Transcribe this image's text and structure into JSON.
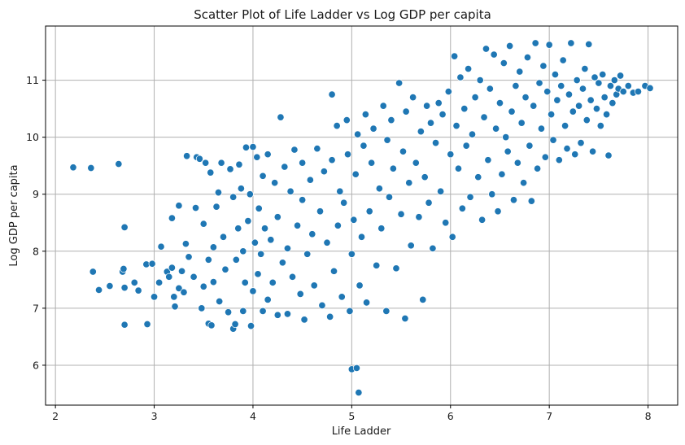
{
  "chart_data": {
    "type": "scatter",
    "title": "Scatter Plot of Life Ladder vs Log GDP per capita",
    "xlabel": "Life Ladder",
    "ylabel": "Log GDP per capita",
    "xlim": [
      1.9,
      8.3
    ],
    "ylim": [
      5.3,
      11.95
    ],
    "xticks": [
      "2",
      "3",
      "4",
      "5",
      "6",
      "7",
      "8"
    ],
    "yticks": [
      "6",
      "7",
      "8",
      "9",
      "10",
      "11"
    ],
    "grid": true,
    "marker_color": "#1f77b4",
    "marker_edge_color": "#ffffff",
    "points": [
      [
        2.18,
        9.47
      ],
      [
        2.36,
        9.46
      ],
      [
        2.64,
        9.53
      ],
      [
        2.38,
        7.64
      ],
      [
        2.44,
        7.32
      ],
      [
        2.55,
        7.39
      ],
      [
        2.68,
        7.64
      ],
      [
        2.69,
        7.69
      ],
      [
        2.7,
        7.36
      ],
      [
        2.7,
        6.71
      ],
      [
        2.7,
        8.42
      ],
      [
        2.8,
        7.45
      ],
      [
        2.84,
        7.31
      ],
      [
        2.92,
        7.77
      ],
      [
        2.93,
        6.72
      ],
      [
        2.98,
        7.78
      ],
      [
        3.0,
        7.2
      ],
      [
        3.05,
        7.45
      ],
      [
        3.07,
        8.08
      ],
      [
        3.13,
        7.64
      ],
      [
        3.15,
        7.55
      ],
      [
        3.18,
        7.71
      ],
      [
        3.18,
        8.58
      ],
      [
        3.2,
        7.2
      ],
      [
        3.21,
        7.03
      ],
      [
        3.25,
        7.35
      ],
      [
        3.25,
        8.8
      ],
      [
        3.28,
        7.65
      ],
      [
        3.3,
        7.28
      ],
      [
        3.32,
        8.13
      ],
      [
        3.33,
        9.67
      ],
      [
        3.35,
        7.9
      ],
      [
        3.4,
        7.55
      ],
      [
        3.42,
        8.76
      ],
      [
        3.43,
        9.65
      ],
      [
        3.46,
        9.62
      ],
      [
        3.48,
        7.0
      ],
      [
        3.5,
        7.38
      ],
      [
        3.5,
        8.48
      ],
      [
        3.52,
        9.55
      ],
      [
        3.55,
        6.73
      ],
      [
        3.55,
        7.85
      ],
      [
        3.57,
        9.38
      ],
      [
        3.58,
        6.7
      ],
      [
        3.6,
        8.07
      ],
      [
        3.6,
        7.46
      ],
      [
        3.63,
        8.78
      ],
      [
        3.65,
        9.03
      ],
      [
        3.66,
        7.12
      ],
      [
        3.68,
        9.55
      ],
      [
        3.7,
        8.25
      ],
      [
        3.72,
        7.68
      ],
      [
        3.75,
        6.93
      ],
      [
        3.77,
        9.44
      ],
      [
        3.8,
        6.64
      ],
      [
        3.8,
        8.95
      ],
      [
        3.82,
        6.72
      ],
      [
        3.83,
        7.85
      ],
      [
        3.85,
        8.4
      ],
      [
        3.86,
        9.52
      ],
      [
        3.88,
        9.1
      ],
      [
        3.9,
        6.95
      ],
      [
        3.9,
        8.0
      ],
      [
        3.92,
        7.45
      ],
      [
        3.93,
        9.82
      ],
      [
        3.95,
        8.53
      ],
      [
        3.97,
        9.0
      ],
      [
        3.98,
        6.69
      ],
      [
        4.0,
        7.3
      ],
      [
        4.0,
        9.83
      ],
      [
        4.02,
        8.15
      ],
      [
        4.04,
        9.65
      ],
      [
        4.05,
        7.6
      ],
      [
        4.06,
        8.75
      ],
      [
        4.08,
        7.95
      ],
      [
        4.1,
        6.95
      ],
      [
        4.1,
        9.32
      ],
      [
        4.12,
        8.4
      ],
      [
        4.15,
        7.15
      ],
      [
        4.15,
        9.7
      ],
      [
        4.18,
        8.2
      ],
      [
        4.2,
        7.45
      ],
      [
        4.22,
        9.2
      ],
      [
        4.25,
        6.88
      ],
      [
        4.25,
        8.6
      ],
      [
        4.28,
        10.35
      ],
      [
        4.3,
        7.8
      ],
      [
        4.32,
        9.48
      ],
      [
        4.35,
        8.05
      ],
      [
        4.35,
        6.9
      ],
      [
        4.38,
        9.05
      ],
      [
        4.4,
        7.55
      ],
      [
        4.42,
        9.78
      ],
      [
        4.45,
        8.45
      ],
      [
        4.48,
        7.25
      ],
      [
        4.5,
        8.9
      ],
      [
        4.5,
        9.55
      ],
      [
        4.52,
        6.8
      ],
      [
        4.55,
        7.95
      ],
      [
        4.58,
        9.25
      ],
      [
        4.6,
        8.3
      ],
      [
        4.62,
        7.4
      ],
      [
        4.65,
        9.8
      ],
      [
        4.68,
        8.7
      ],
      [
        4.7,
        7.05
      ],
      [
        4.72,
        9.4
      ],
      [
        4.75,
        8.15
      ],
      [
        4.78,
        6.85
      ],
      [
        4.8,
        10.75
      ],
      [
        4.8,
        9.6
      ],
      [
        4.82,
        7.65
      ],
      [
        4.85,
        10.2
      ],
      [
        4.86,
        8.45
      ],
      [
        4.88,
        9.05
      ],
      [
        4.9,
        7.2
      ],
      [
        4.92,
        8.85
      ],
      [
        4.95,
        10.3
      ],
      [
        4.96,
        9.7
      ],
      [
        4.98,
        6.95
      ],
      [
        5.0,
        5.93
      ],
      [
        5.0,
        7.95
      ],
      [
        5.02,
        8.55
      ],
      [
        5.04,
        9.35
      ],
      [
        5.05,
        5.95
      ],
      [
        5.06,
        10.05
      ],
      [
        5.07,
        5.52
      ],
      [
        5.08,
        7.4
      ],
      [
        5.1,
        8.25
      ],
      [
        5.12,
        9.85
      ],
      [
        5.14,
        10.4
      ],
      [
        5.15,
        7.1
      ],
      [
        5.18,
        8.7
      ],
      [
        5.2,
        9.55
      ],
      [
        5.22,
        10.15
      ],
      [
        5.25,
        7.75
      ],
      [
        5.28,
        9.1
      ],
      [
        5.3,
        8.4
      ],
      [
        5.32,
        10.55
      ],
      [
        5.35,
        6.95
      ],
      [
        5.36,
        9.95
      ],
      [
        5.38,
        8.95
      ],
      [
        5.4,
        10.3
      ],
      [
        5.42,
        9.45
      ],
      [
        5.45,
        7.7
      ],
      [
        5.48,
        10.95
      ],
      [
        5.5,
        8.65
      ],
      [
        5.52,
        9.75
      ],
      [
        5.54,
        6.82
      ],
      [
        5.55,
        10.45
      ],
      [
        5.58,
        9.2
      ],
      [
        5.6,
        8.1
      ],
      [
        5.62,
        10.7
      ],
      [
        5.65,
        9.55
      ],
      [
        5.68,
        8.6
      ],
      [
        5.7,
        10.1
      ],
      [
        5.72,
        7.15
      ],
      [
        5.74,
        9.3
      ],
      [
        5.76,
        10.55
      ],
      [
        5.78,
        8.85
      ],
      [
        5.8,
        10.25
      ],
      [
        5.82,
        8.05
      ],
      [
        5.85,
        9.9
      ],
      [
        5.88,
        10.6
      ],
      [
        5.9,
        9.05
      ],
      [
        5.92,
        10.4
      ],
      [
        5.95,
        8.5
      ],
      [
        5.98,
        10.8
      ],
      [
        6.0,
        9.7
      ],
      [
        6.02,
        8.25
      ],
      [
        6.04,
        11.42
      ],
      [
        6.06,
        10.2
      ],
      [
        6.08,
        9.45
      ],
      [
        6.1,
        11.05
      ],
      [
        6.12,
        8.75
      ],
      [
        6.14,
        10.5
      ],
      [
        6.16,
        9.85
      ],
      [
        6.18,
        11.2
      ],
      [
        6.2,
        8.95
      ],
      [
        6.22,
        10.05
      ],
      [
        6.25,
        10.7
      ],
      [
        6.28,
        9.3
      ],
      [
        6.3,
        11.0
      ],
      [
        6.32,
        8.55
      ],
      [
        6.34,
        10.35
      ],
      [
        6.36,
        11.55
      ],
      [
        6.38,
        9.6
      ],
      [
        6.4,
        10.85
      ],
      [
        6.42,
        9.0
      ],
      [
        6.44,
        11.45
      ],
      [
        6.46,
        10.15
      ],
      [
        6.48,
        8.7
      ],
      [
        6.5,
        10.6
      ],
      [
        6.52,
        9.35
      ],
      [
        6.54,
        11.3
      ],
      [
        6.56,
        10.0
      ],
      [
        6.58,
        9.75
      ],
      [
        6.6,
        11.6
      ],
      [
        6.62,
        10.45
      ],
      [
        6.64,
        8.9
      ],
      [
        6.66,
        10.9
      ],
      [
        6.68,
        9.55
      ],
      [
        6.7,
        11.15
      ],
      [
        6.72,
        10.25
      ],
      [
        6.74,
        9.2
      ],
      [
        6.76,
        10.7
      ],
      [
        6.78,
        11.4
      ],
      [
        6.8,
        9.85
      ],
      [
        6.82,
        8.88
      ],
      [
        6.84,
        10.55
      ],
      [
        6.86,
        11.65
      ],
      [
        6.88,
        9.45
      ],
      [
        6.9,
        10.95
      ],
      [
        6.92,
        10.15
      ],
      [
        6.94,
        11.25
      ],
      [
        6.96,
        9.65
      ],
      [
        6.98,
        10.8
      ],
      [
        7.0,
        11.62
      ],
      [
        7.02,
        10.4
      ],
      [
        7.04,
        9.95
      ],
      [
        7.06,
        11.1
      ],
      [
        7.08,
        10.65
      ],
      [
        7.1,
        9.6
      ],
      [
        7.12,
        10.9
      ],
      [
        7.14,
        11.35
      ],
      [
        7.16,
        10.2
      ],
      [
        7.18,
        9.8
      ],
      [
        7.2,
        10.75
      ],
      [
        7.22,
        11.65
      ],
      [
        7.24,
        10.45
      ],
      [
        7.26,
        9.7
      ],
      [
        7.28,
        11.0
      ],
      [
        7.3,
        10.55
      ],
      [
        7.32,
        9.9
      ],
      [
        7.34,
        10.85
      ],
      [
        7.36,
        11.2
      ],
      [
        7.38,
        10.3
      ],
      [
        7.4,
        11.63
      ],
      [
        7.42,
        10.65
      ],
      [
        7.44,
        9.75
      ],
      [
        7.46,
        11.05
      ],
      [
        7.48,
        10.5
      ],
      [
        7.5,
        10.95
      ],
      [
        7.52,
        10.2
      ],
      [
        7.54,
        11.1
      ],
      [
        7.56,
        10.7
      ],
      [
        7.58,
        10.4
      ],
      [
        7.6,
        9.68
      ],
      [
        7.62,
        10.9
      ],
      [
        7.64,
        10.6
      ],
      [
        7.66,
        11.0
      ],
      [
        7.68,
        10.75
      ],
      [
        7.7,
        10.85
      ],
      [
        7.72,
        11.08
      ],
      [
        7.75,
        10.8
      ],
      [
        7.8,
        10.9
      ],
      [
        7.85,
        10.78
      ],
      [
        7.9,
        10.8
      ],
      [
        7.97,
        10.9
      ],
      [
        8.02,
        10.86
      ]
    ]
  }
}
